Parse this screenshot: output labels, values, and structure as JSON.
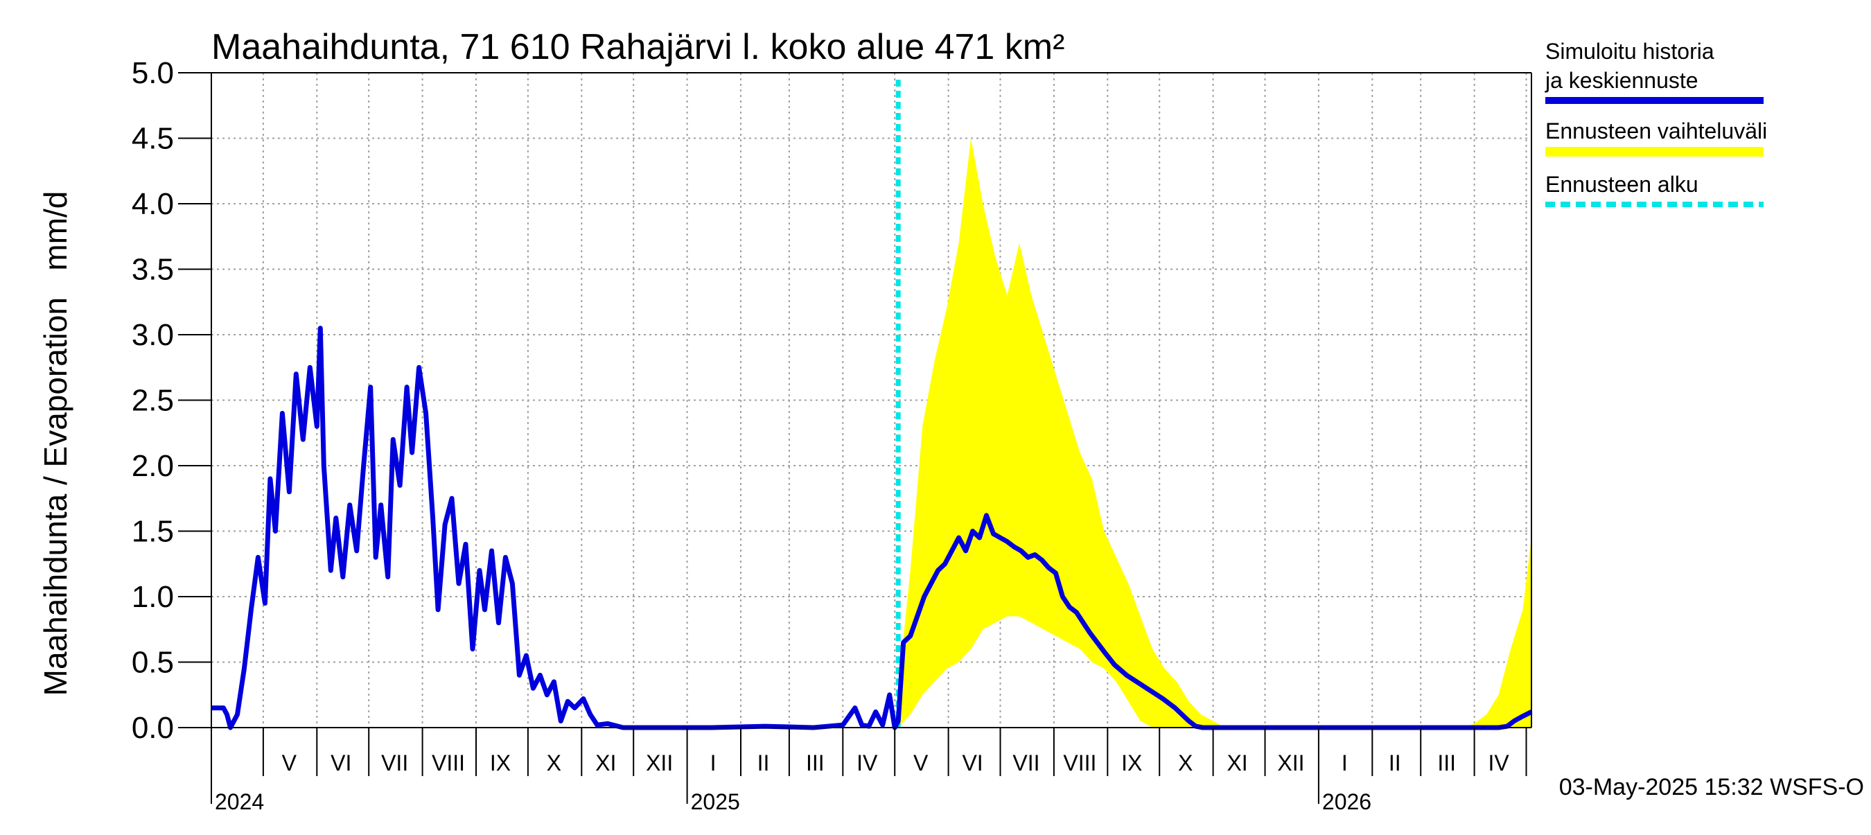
{
  "chart_data": {
    "type": "line",
    "title": "Maahaihdunta, 71 610 Rahajärvi l. koko alue 471 km²",
    "ylabel": "Maahaihdunta / Evaporation   mm/d",
    "ylim": [
      0,
      5.0
    ],
    "yticks": [
      "0.0",
      "0.5",
      "1.0",
      "1.5",
      "2.0",
      "2.5",
      "3.0",
      "3.5",
      "4.0",
      "4.5",
      "5.0"
    ],
    "xlim": [
      "2024-04-01",
      "2026-05-04"
    ],
    "grid": true,
    "legend_position": "top-right",
    "month_labels": [
      {
        "label": "V",
        "date": "2024-05-16"
      },
      {
        "label": "VI",
        "date": "2024-06-15"
      },
      {
        "label": "VII",
        "date": "2024-07-16"
      },
      {
        "label": "VIII",
        "date": "2024-08-16"
      },
      {
        "label": "IX",
        "date": "2024-09-15"
      },
      {
        "label": "X",
        "date": "2024-10-16"
      },
      {
        "label": "XI",
        "date": "2024-11-15"
      },
      {
        "label": "XII",
        "date": "2024-12-16"
      },
      {
        "label": "I",
        "date": "2025-01-16"
      },
      {
        "label": "II",
        "date": "2025-02-14"
      },
      {
        "label": "III",
        "date": "2025-03-16"
      },
      {
        "label": "IV",
        "date": "2025-04-15"
      },
      {
        "label": "V",
        "date": "2025-05-16"
      },
      {
        "label": "VI",
        "date": "2025-06-15"
      },
      {
        "label": "VII",
        "date": "2025-07-16"
      },
      {
        "label": "VIII",
        "date": "2025-08-16"
      },
      {
        "label": "IX",
        "date": "2025-09-15"
      },
      {
        "label": "X",
        "date": "2025-10-16"
      },
      {
        "label": "XI",
        "date": "2025-11-15"
      },
      {
        "label": "XII",
        "date": "2025-12-16"
      },
      {
        "label": "I",
        "date": "2026-01-16"
      },
      {
        "label": "II",
        "date": "2026-02-14"
      },
      {
        "label": "III",
        "date": "2026-03-16"
      },
      {
        "label": "IV",
        "date": "2026-04-15"
      }
    ],
    "year_labels": [
      {
        "label": "2024",
        "date": "2024-04-01"
      },
      {
        "label": "2025",
        "date": "2025-01-01"
      },
      {
        "label": "2026",
        "date": "2026-01-01"
      }
    ],
    "series": [
      {
        "name": "Ennusteen vaihteluväli",
        "kind": "band",
        "color": "#ffff00",
        "x": [
          "2025-05-03",
          "2025-05-10",
          "2025-05-17",
          "2025-05-24",
          "2025-05-31",
          "2025-06-07",
          "2025-06-14",
          "2025-06-21",
          "2025-06-28",
          "2025-07-05",
          "2025-07-12",
          "2025-07-19",
          "2025-07-26",
          "2025-08-02",
          "2025-08-09",
          "2025-08-16",
          "2025-08-23",
          "2025-08-30",
          "2025-09-06",
          "2025-09-13",
          "2025-09-20",
          "2025-09-27",
          "2025-10-04",
          "2025-10-11",
          "2025-10-18",
          "2025-10-25",
          "2025-11-01",
          "2025-11-08",
          "2026-03-25",
          "2026-04-01",
          "2026-04-08",
          "2026-04-15",
          "2026-04-22",
          "2026-04-29",
          "2026-05-04"
        ],
        "lower": [
          0.0,
          0.1,
          0.25,
          0.35,
          0.45,
          0.5,
          0.6,
          0.75,
          0.8,
          0.85,
          0.85,
          0.8,
          0.75,
          0.7,
          0.65,
          0.6,
          0.5,
          0.45,
          0.35,
          0.2,
          0.05,
          0.0,
          0.0,
          0.0,
          0.0,
          0.0,
          0.0,
          0.0,
          0.0,
          0.0,
          0.0,
          0.0,
          0.0,
          0.0,
          0.0
        ],
        "upper": [
          0.3,
          1.2,
          2.3,
          2.8,
          3.2,
          3.7,
          4.5,
          4.0,
          3.6,
          3.3,
          3.7,
          3.3,
          3.0,
          2.7,
          2.4,
          2.1,
          1.9,
          1.5,
          1.3,
          1.1,
          0.85,
          0.6,
          0.45,
          0.35,
          0.2,
          0.1,
          0.05,
          0.0,
          0.0,
          0.03,
          0.1,
          0.25,
          0.6,
          0.9,
          1.45
        ]
      },
      {
        "name": "Simuloitu historia ja keskiennuste",
        "kind": "line",
        "color": "#0000dd",
        "x": [
          "2024-04-01",
          "2024-04-08",
          "2024-04-10",
          "2024-04-12",
          "2024-04-16",
          "2024-04-20",
          "2024-04-24",
          "2024-04-28",
          "2024-05-02",
          "2024-05-05",
          "2024-05-08",
          "2024-05-12",
          "2024-05-16",
          "2024-05-20",
          "2024-05-24",
          "2024-05-28",
          "2024-06-01",
          "2024-06-03",
          "2024-06-05",
          "2024-06-09",
          "2024-06-12",
          "2024-06-16",
          "2024-06-20",
          "2024-06-24",
          "2024-06-28",
          "2024-07-02",
          "2024-07-05",
          "2024-07-08",
          "2024-07-12",
          "2024-07-15",
          "2024-07-19",
          "2024-07-23",
          "2024-07-26",
          "2024-07-30",
          "2024-08-03",
          "2024-08-07",
          "2024-08-10",
          "2024-08-14",
          "2024-08-18",
          "2024-08-22",
          "2024-08-26",
          "2024-08-30",
          "2024-09-03",
          "2024-09-06",
          "2024-09-10",
          "2024-09-14",
          "2024-09-18",
          "2024-09-22",
          "2024-09-26",
          "2024-09-30",
          "2024-10-04",
          "2024-10-08",
          "2024-10-12",
          "2024-10-16",
          "2024-10-20",
          "2024-10-24",
          "2024-10-28",
          "2024-11-02",
          "2024-11-06",
          "2024-11-10",
          "2024-11-16",
          "2024-11-25",
          "2024-12-15",
          "2025-01-15",
          "2025-02-15",
          "2025-03-15",
          "2025-04-01",
          "2025-04-08",
          "2025-04-12",
          "2025-04-16",
          "2025-04-20",
          "2025-04-24",
          "2025-04-28",
          "2025-05-01",
          "2025-05-03",
          "2025-05-06",
          "2025-05-10",
          "2025-05-14",
          "2025-05-18",
          "2025-05-22",
          "2025-05-26",
          "2025-05-30",
          "2025-06-03",
          "2025-06-07",
          "2025-06-11",
          "2025-06-15",
          "2025-06-19",
          "2025-06-23",
          "2025-06-27",
          "2025-07-01",
          "2025-07-05",
          "2025-07-09",
          "2025-07-13",
          "2025-07-17",
          "2025-07-21",
          "2025-07-25",
          "2025-07-29",
          "2025-08-02",
          "2025-08-06",
          "2025-08-10",
          "2025-08-14",
          "2025-08-18",
          "2025-08-22",
          "2025-08-26",
          "2025-08-30",
          "2025-09-05",
          "2025-09-12",
          "2025-09-19",
          "2025-09-26",
          "2025-10-03",
          "2025-10-10",
          "2025-10-14",
          "2025-10-18",
          "2025-10-22",
          "2025-10-26",
          "2025-11-01",
          "2026-01-15",
          "2026-04-15",
          "2026-04-20",
          "2026-04-24",
          "2026-04-28",
          "2026-05-01",
          "2026-05-04"
        ],
        "y": [
          0.15,
          0.15,
          0.1,
          0.0,
          0.1,
          0.45,
          0.9,
          1.3,
          0.95,
          1.9,
          1.5,
          2.4,
          1.8,
          2.7,
          2.2,
          2.75,
          2.3,
          3.05,
          2.0,
          1.2,
          1.6,
          1.15,
          1.7,
          1.35,
          2.0,
          2.6,
          1.3,
          1.7,
          1.15,
          2.2,
          1.85,
          2.6,
          2.1,
          2.75,
          2.4,
          1.6,
          0.9,
          1.55,
          1.75,
          1.1,
          1.4,
          0.6,
          1.2,
          0.9,
          1.35,
          0.8,
          1.3,
          1.1,
          0.4,
          0.55,
          0.3,
          0.4,
          0.25,
          0.35,
          0.05,
          0.2,
          0.15,
          0.22,
          0.1,
          0.02,
          0.03,
          0.0,
          0.0,
          0.0,
          0.01,
          0.0,
          0.02,
          0.15,
          0.02,
          0.01,
          0.12,
          0.02,
          0.25,
          0.0,
          0.05,
          0.65,
          0.7,
          0.85,
          1.0,
          1.1,
          1.2,
          1.25,
          1.35,
          1.45,
          1.35,
          1.5,
          1.45,
          1.62,
          1.48,
          1.45,
          1.42,
          1.38,
          1.35,
          1.3,
          1.32,
          1.28,
          1.22,
          1.18,
          1.0,
          0.92,
          0.88,
          0.8,
          0.72,
          0.65,
          0.58,
          0.48,
          0.4,
          0.34,
          0.28,
          0.22,
          0.15,
          0.1,
          0.05,
          0.01,
          0.0,
          0.0,
          0.0,
          0.0,
          0.01,
          0.05,
          0.08,
          0.1,
          0.12
        ]
      },
      {
        "name": "Ennusteen alku",
        "kind": "vline",
        "color": "#00e5e5",
        "x": "2025-05-03"
      }
    ],
    "legend": [
      {
        "label": "Simuloitu historia ja keskiennuste",
        "color": "#0000dd",
        "style": "solid"
      },
      {
        "label": "Ennusteen vaihteluväli",
        "color": "#ffff00",
        "style": "band"
      },
      {
        "label": "Ennusteen alku",
        "color": "#00e5e5",
        "style": "dashed"
      }
    ],
    "footer": "03-May-2025 15:32 WSFS-O"
  }
}
